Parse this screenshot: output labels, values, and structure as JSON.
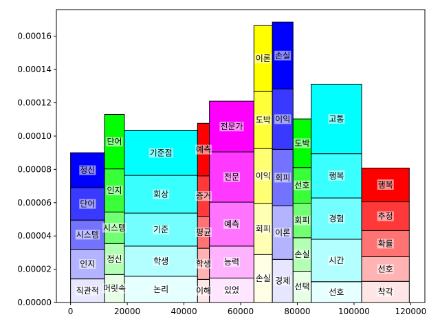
{
  "chart_data": {
    "type": "mosaic",
    "x_range": [
      -5000,
      125000
    ],
    "y_range": [
      0,
      0.000176
    ],
    "x_ticks": [
      0,
      20000,
      40000,
      60000,
      80000,
      100000,
      120000
    ],
    "x_tick_labels": [
      "0",
      "20000",
      "40000",
      "60000",
      "80000",
      "100000",
      "120000"
    ],
    "y_ticks": [
      0,
      2e-05,
      4e-05,
      6e-05,
      8e-05,
      0.0001,
      0.00012,
      0.00014,
      0.00016
    ],
    "y_tick_labels": [
      "0.00000",
      "0.00002",
      "0.00004",
      "0.00006",
      "0.00008",
      "0.00010",
      "0.00012",
      "0.00014",
      "0.00016"
    ],
    "grid": false,
    "columns": [
      {
        "x0": 0,
        "x1": 12000,
        "color": "#0000ff",
        "segments": [
          {
            "label": "직관적",
            "value": 1.42e-05
          },
          {
            "label": "인지",
            "value": 1.78e-05
          },
          {
            "label": "시스템",
            "value": 1.75e-05
          },
          {
            "label": "단어",
            "value": 1.95e-05
          },
          {
            "label": "정신",
            "value": 2.1e-05
          }
        ]
      },
      {
        "x0": 12000,
        "x1": 19000,
        "color": "#00ff00",
        "segments": [
          {
            "label": "머릿속",
            "value": 1.68e-05
          },
          {
            "label": "정신",
            "value": 1.86e-05
          },
          {
            "label": "시스템",
            "value": 1.9e-05
          },
          {
            "label": "인지",
            "value": 2.59e-05
          },
          {
            "label": "단어",
            "value": 3.27e-05
          }
        ]
      },
      {
        "x0": 19000,
        "x1": 44800,
        "color": "#00ffff",
        "segments": [
          {
            "label": "논리",
            "value": 1.58e-05
          },
          {
            "label": "학생",
            "value": 1.81e-05
          },
          {
            "label": "기준",
            "value": 1.98e-05
          },
          {
            "label": "회상",
            "value": 2.27e-05
          },
          {
            "label": "기준점",
            "value": 2.71e-05
          }
        ]
      },
      {
        "x0": 44800,
        "x1": 49000,
        "color": "#ff0000",
        "segments": [
          {
            "label": "이해",
            "value": 1.39e-05
          },
          {
            "label": "학생",
            "value": 1.87e-05
          },
          {
            "label": "평균",
            "value": 1.92e-05
          },
          {
            "label": "증거",
            "value": 2.43e-05
          },
          {
            "label": "예측",
            "value": 3.16e-05
          }
        ]
      },
      {
        "x0": 49000,
        "x1": 64700,
        "color": "#ff00ff",
        "segments": [
          {
            "label": "있었",
            "value": 1.47e-05
          },
          {
            "label": "능력",
            "value": 1.92e-05
          },
          {
            "label": "예측",
            "value": 2.64e-05
          },
          {
            "label": "전문",
            "value": 3.02e-05
          },
          {
            "label": "전문가",
            "value": 3.05e-05
          }
        ]
      },
      {
        "x0": 64700,
        "x1": 71200,
        "color": "#ffff00",
        "segments": [
          {
            "label": "손실",
            "value": 2.88e-05
          },
          {
            "label": "회피",
            "value": 3.07e-05
          },
          {
            "label": "이익",
            "value": 3.32e-05
          },
          {
            "label": "도박",
            "value": 3.41e-05
          },
          {
            "label": "이론",
            "value": 3.96e-05
          }
        ]
      },
      {
        "x0": 71200,
        "x1": 78500,
        "color": "#0000ff",
        "segments": [
          {
            "label": "경제",
            "value": 2.59e-05
          },
          {
            "label": "이론",
            "value": 3.22e-05
          },
          {
            "label": "회피",
            "value": 3.39e-05
          },
          {
            "label": "이익",
            "value": 3.63e-05
          },
          {
            "label": "손실",
            "value": 4.02e-05
          }
        ]
      },
      {
        "x0": 78500,
        "x1": 84900,
        "color": "#00ff00",
        "segments": [
          {
            "label": "선택",
            "value": 1.88e-05
          },
          {
            "label": "손실",
            "value": 2.01e-05
          },
          {
            "label": "회피",
            "value": 2.08e-05
          },
          {
            "label": "선호",
            "value": 2.14e-05
          },
          {
            "label": "도박",
            "value": 2.92e-05
          }
        ]
      },
      {
        "x0": 84900,
        "x1": 102700,
        "color": "#00ffff",
        "segments": [
          {
            "label": "선호",
            "value": 1.25e-05
          },
          {
            "label": "시간",
            "value": 2.55e-05
          },
          {
            "label": "경험",
            "value": 2.48e-05
          },
          {
            "label": "행복",
            "value": 2.66e-05
          },
          {
            "label": "고통",
            "value": 4.18e-05
          }
        ]
      },
      {
        "x0": 102700,
        "x1": 119500,
        "color": "#ff0000",
        "segments": [
          {
            "label": "착각",
            "value": 1.27e-05
          },
          {
            "label": "선호",
            "value": 1.48e-05
          },
          {
            "label": "확률",
            "value": 1.57e-05
          },
          {
            "label": "추정",
            "value": 1.73e-05
          },
          {
            "label": "행복",
            "value": 2.03e-05
          }
        ]
      }
    ]
  }
}
